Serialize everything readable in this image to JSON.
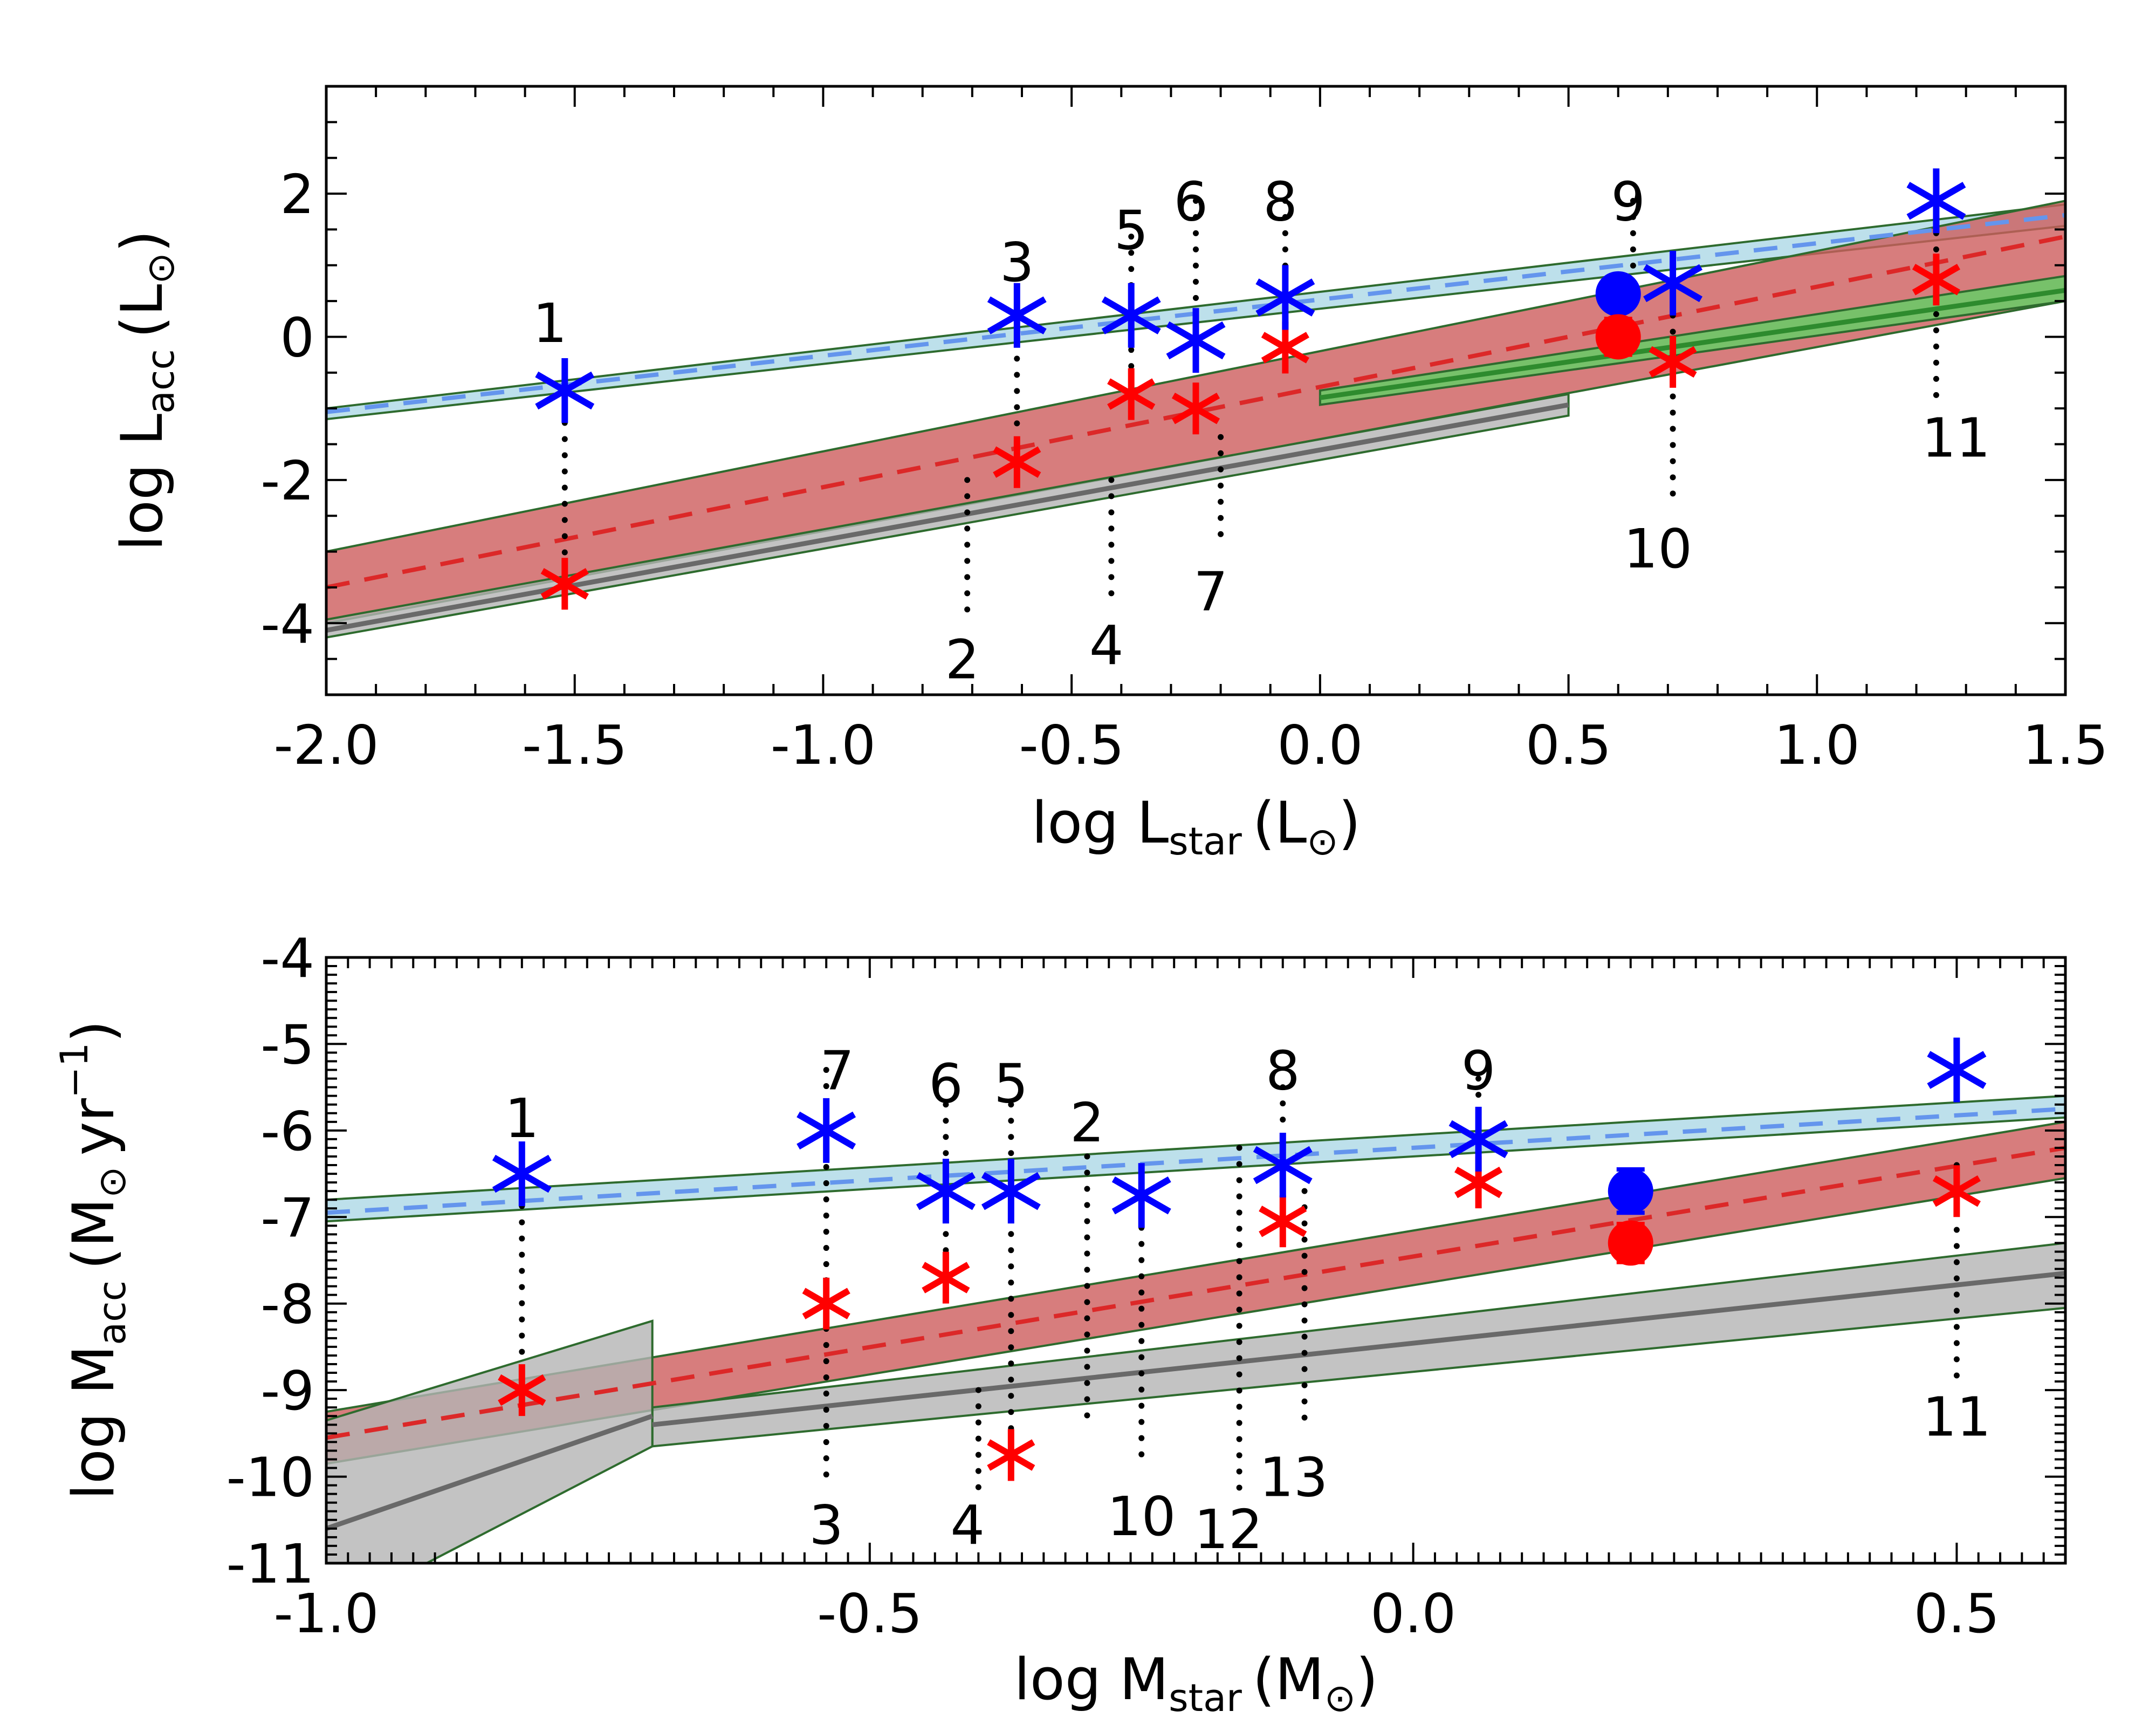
{
  "colors": {
    "blue_star": "#0000ff",
    "red_star": "#ff0000",
    "blue_band": "#add8e6",
    "blue_dash": "#6495ed",
    "red_band": "#cd5c5c",
    "red_dash": "#dc2828",
    "gray_band": "#b4b4b4",
    "gray_line": "#696969",
    "green_band": "#66cc66",
    "band_edge": "#2e6b2e"
  },
  "chart_data": [
    {
      "type": "scatter",
      "id": "top",
      "title": "",
      "xlabel": {
        "main": "log L",
        "sub": "star",
        "unit": "(L",
        "sun": "⊙",
        "close": ")"
      },
      "ylabel": {
        "main": "log L",
        "sub": "acc",
        "unit": "(L",
        "sun": "⊙",
        "close": ")"
      },
      "xlim": [
        -2.0,
        1.5
      ],
      "ylim": [
        -5.0,
        3.5
      ],
      "xticks": [
        -2.0,
        -1.5,
        -1.0,
        -0.5,
        0.0,
        0.5,
        1.0,
        1.5
      ],
      "xtick_labels": [
        "-2.0",
        "-1.5",
        "-1.0",
        "-0.5",
        "0.0",
        "0.5",
        "1.0",
        "1.5"
      ],
      "yticks": [
        -4,
        -2,
        0,
        2
      ],
      "ytick_labels": [
        "-4",
        "-2",
        "0",
        "2"
      ],
      "bands": [
        {
          "name": "blue-band",
          "color": "#add8e6",
          "x": [
            -2.0,
            1.5
          ],
          "lower": [
            -1.15,
            1.55
          ],
          "upper": [
            -1.0,
            1.85
          ]
        },
        {
          "name": "red-band",
          "color": "#cd5c5c",
          "x": [
            -2.0,
            1.5
          ],
          "lower": [
            -4.0,
            0.5
          ],
          "upper": [
            -3.0,
            1.9
          ]
        },
        {
          "name": "gray-band",
          "color": "#b4b4b4",
          "x": [
            -2.0,
            0.5
          ],
          "lower": [
            -4.2,
            -1.1
          ],
          "upper": [
            -3.95,
            -0.8
          ]
        },
        {
          "name": "green-band",
          "color": "#66cc66",
          "x": [
            0.0,
            1.5
          ],
          "lower": [
            -0.95,
            0.5
          ],
          "upper": [
            -0.75,
            0.85
          ]
        }
      ],
      "lines": [
        {
          "name": "blue-dashed-fit",
          "color": "#6495ed",
          "dash": true,
          "x": [
            -2.0,
            1.5
          ],
          "y": [
            -1.05,
            1.7
          ]
        },
        {
          "name": "red-dashed-fit",
          "color": "#dc2828",
          "dash": true,
          "x": [
            -2.0,
            1.5
          ],
          "y": [
            -3.5,
            1.4
          ]
        },
        {
          "name": "gray-fit",
          "color": "#696969",
          "dash": false,
          "x": [
            -2.0,
            0.5
          ],
          "y": [
            -4.1,
            -0.95
          ]
        },
        {
          "name": "green-fit",
          "color": "#2e8b2e",
          "dash": false,
          "x": [
            0.0,
            1.5
          ],
          "y": [
            -0.85,
            0.65
          ]
        }
      ],
      "blue_stars": {
        "x": [
          -1.52,
          -0.61,
          -0.38,
          -0.25,
          -0.07,
          0.71,
          1.24
        ],
        "y": [
          -0.75,
          0.3,
          0.3,
          -0.05,
          0.55,
          0.75,
          1.9
        ]
      },
      "red_stars": {
        "x": [
          -1.52,
          -0.61,
          -0.38,
          -0.25,
          -0.07,
          0.71,
          1.24
        ],
        "y": [
          -3.45,
          -1.75,
          -0.8,
          -1.0,
          -0.15,
          -0.35,
          0.8
        ]
      },
      "blue_circle": {
        "x": 0.6,
        "y": 0.6,
        "err": 0.12
      },
      "red_circle": {
        "x": 0.6,
        "y": 0.0,
        "err": 0.25
      },
      "connectors": [
        {
          "x": -1.52,
          "y1": -0.75,
          "y2": -3.45
        },
        {
          "x": -0.71,
          "y1": -2.0,
          "y2": -4.0
        },
        {
          "x": -0.61,
          "y1": 0.6,
          "y2": -1.75
        },
        {
          "x": -0.42,
          "y1": -2.0,
          "y2": -3.7
        },
        {
          "x": -0.38,
          "y1": 1.4,
          "y2": -0.8
        },
        {
          "x": -0.25,
          "y1": 1.9,
          "y2": -0.05
        },
        {
          "x": -0.2,
          "y1": -1.4,
          "y2": -2.8
        },
        {
          "x": -0.07,
          "y1": 1.9,
          "y2": -0.15
        },
        {
          "x": 0.63,
          "y1": 1.9,
          "y2": 0.6
        },
        {
          "x": 0.71,
          "y1": 0.75,
          "y2": -2.4
        },
        {
          "x": 1.24,
          "y1": 1.9,
          "y2": -0.9
        }
      ],
      "labels": [
        {
          "text": "1",
          "x": -1.55,
          "y": 0.2
        },
        {
          "text": "2",
          "x": -0.72,
          "y": -4.5
        },
        {
          "text": "3",
          "x": -0.61,
          "y": 1.05
        },
        {
          "text": "4",
          "x": -0.43,
          "y": -4.3
        },
        {
          "text": "5",
          "x": -0.38,
          "y": 1.5
        },
        {
          "text": "6",
          "x": -0.26,
          "y": 1.9
        },
        {
          "text": "7",
          "x": -0.22,
          "y": -3.55
        },
        {
          "text": "8",
          "x": -0.08,
          "y": 1.9
        },
        {
          "text": "9",
          "x": 0.62,
          "y": 1.9
        },
        {
          "text": "10",
          "x": 0.68,
          "y": -2.95
        },
        {
          "text": "11",
          "x": 1.28,
          "y": -1.4
        }
      ]
    },
    {
      "type": "scatter",
      "id": "bottom",
      "title": "",
      "xlabel": {
        "main": "log M",
        "sub": "star",
        "unit": "(M",
        "sun": "⊙",
        "close": ")"
      },
      "ylabel": {
        "main": "log M",
        "sub": "acc",
        "unit": "(M",
        "sun": "⊙",
        "close": "yr",
        "sup": "−1",
        "end": ")"
      },
      "xlim": [
        -1.0,
        0.6
      ],
      "ylim": [
        -11,
        -4
      ],
      "xticks": [
        -1.0,
        -0.5,
        0.0,
        0.5
      ],
      "xtick_labels": [
        "-1.0",
        "-0.5",
        "0.0",
        "0.5"
      ],
      "yticks": [
        -11,
        -10,
        -9,
        -8,
        -7,
        -6,
        -5,
        -4
      ],
      "ytick_labels": [
        "-11",
        "-10",
        "-9",
        "-8",
        "-7",
        "-6",
        "-5",
        "-4"
      ],
      "bands": [
        {
          "name": "blue-band",
          "color": "#add8e6",
          "x": [
            -1.0,
            0.6
          ],
          "lower": [
            -7.05,
            -5.85
          ],
          "upper": [
            -6.8,
            -5.6
          ]
        },
        {
          "name": "red-band",
          "color": "#cd5c5c",
          "x": [
            -1.0,
            0.6
          ],
          "lower": [
            -9.85,
            -6.55
          ],
          "upper": [
            -9.25,
            -5.9
          ]
        },
        {
          "name": "gray-band",
          "color": "#b4b4b4",
          "x": [
            -0.7,
            0.6
          ],
          "lower": [
            -9.65,
            -8.05
          ],
          "upper": [
            -9.2,
            -7.3
          ]
        },
        {
          "name": "gray-wedge",
          "color": "#b4b4b4",
          "x": [
            -1.0,
            -0.7
          ],
          "lower": [
            -11.6,
            -9.65
          ],
          "upper": [
            -9.35,
            -8.2
          ]
        }
      ],
      "lines": [
        {
          "name": "blue-dashed-fit",
          "color": "#6495ed",
          "dash": true,
          "x": [
            -1.0,
            0.6
          ],
          "y": [
            -6.95,
            -5.75
          ]
        },
        {
          "name": "red-dashed-fit",
          "color": "#dc2828",
          "dash": true,
          "x": [
            -1.0,
            0.6
          ],
          "y": [
            -9.55,
            -6.2
          ]
        },
        {
          "name": "gray-fit-lowmass",
          "color": "#696969",
          "dash": false,
          "x": [
            -1.0,
            -0.7
          ],
          "y": [
            -10.6,
            -9.3
          ]
        },
        {
          "name": "gray-fit",
          "color": "#696969",
          "dash": false,
          "x": [
            -0.7,
            0.6
          ],
          "y": [
            -9.4,
            -7.65
          ]
        }
      ],
      "blue_stars": {
        "x": [
          -0.82,
          -0.54,
          -0.43,
          -0.37,
          -0.25,
          -0.12,
          0.06,
          0.5
        ],
        "y": [
          -6.5,
          -6.0,
          -6.7,
          -6.7,
          -6.75,
          -6.4,
          -6.1,
          -5.3
        ]
      },
      "red_stars": {
        "x": [
          -0.82,
          -0.54,
          -0.43,
          -0.37,
          -0.12,
          0.06,
          0.5
        ],
        "y": [
          -9.0,
          -8.0,
          -7.7,
          -9.75,
          -7.05,
          -6.6,
          -6.7
        ]
      },
      "blue_circle": {
        "x": 0.2,
        "y": -6.7,
        "err": 0.25
      },
      "red_circle": {
        "x": 0.2,
        "y": -7.3,
        "err": 0.22
      },
      "connectors": [
        {
          "x": -0.82,
          "y1": -6.5,
          "y2": -9.0
        },
        {
          "x": -0.54,
          "y1": -5.3,
          "y2": -10.0
        },
        {
          "x": -0.43,
          "y1": -5.7,
          "y2": -7.7
        },
        {
          "x": -0.4,
          "y1": -9.0,
          "y2": -10.2
        },
        {
          "x": -0.37,
          "y1": -5.7,
          "y2": -9.75
        },
        {
          "x": -0.3,
          "y1": -6.3,
          "y2": -9.3
        },
        {
          "x": -0.25,
          "y1": -6.75,
          "y2": -9.9
        },
        {
          "x": -0.16,
          "y1": -6.2,
          "y2": -10.2
        },
        {
          "x": -0.12,
          "y1": -5.5,
          "y2": -7.05
        },
        {
          "x": -0.1,
          "y1": -6.7,
          "y2": -9.4
        },
        {
          "x": 0.06,
          "y1": -5.4,
          "y2": -6.6
        },
        {
          "x": 0.5,
          "y1": -6.4,
          "y2": -9.0
        }
      ],
      "labels": [
        {
          "text": "1",
          "x": -0.82,
          "y": -5.85
        },
        {
          "text": "2",
          "x": -0.3,
          "y": -5.9
        },
        {
          "text": "3",
          "x": -0.54,
          "y": -10.55
        },
        {
          "text": "4",
          "x": -0.41,
          "y": -10.55
        },
        {
          "text": "5",
          "x": -0.37,
          "y": -5.45
        },
        {
          "text": "6",
          "x": -0.43,
          "y": -5.45
        },
        {
          "text": "7",
          "x": -0.53,
          "y": -5.3
        },
        {
          "text": "8",
          "x": -0.12,
          "y": -5.3
        },
        {
          "text": "9",
          "x": 0.06,
          "y": -5.3
        },
        {
          "text": "10",
          "x": -0.25,
          "y": -10.45
        },
        {
          "text": "11",
          "x": 0.5,
          "y": -9.3
        },
        {
          "text": "12",
          "x": -0.17,
          "y": -10.6
        },
        {
          "text": "13",
          "x": -0.11,
          "y": -10.0
        }
      ]
    }
  ]
}
